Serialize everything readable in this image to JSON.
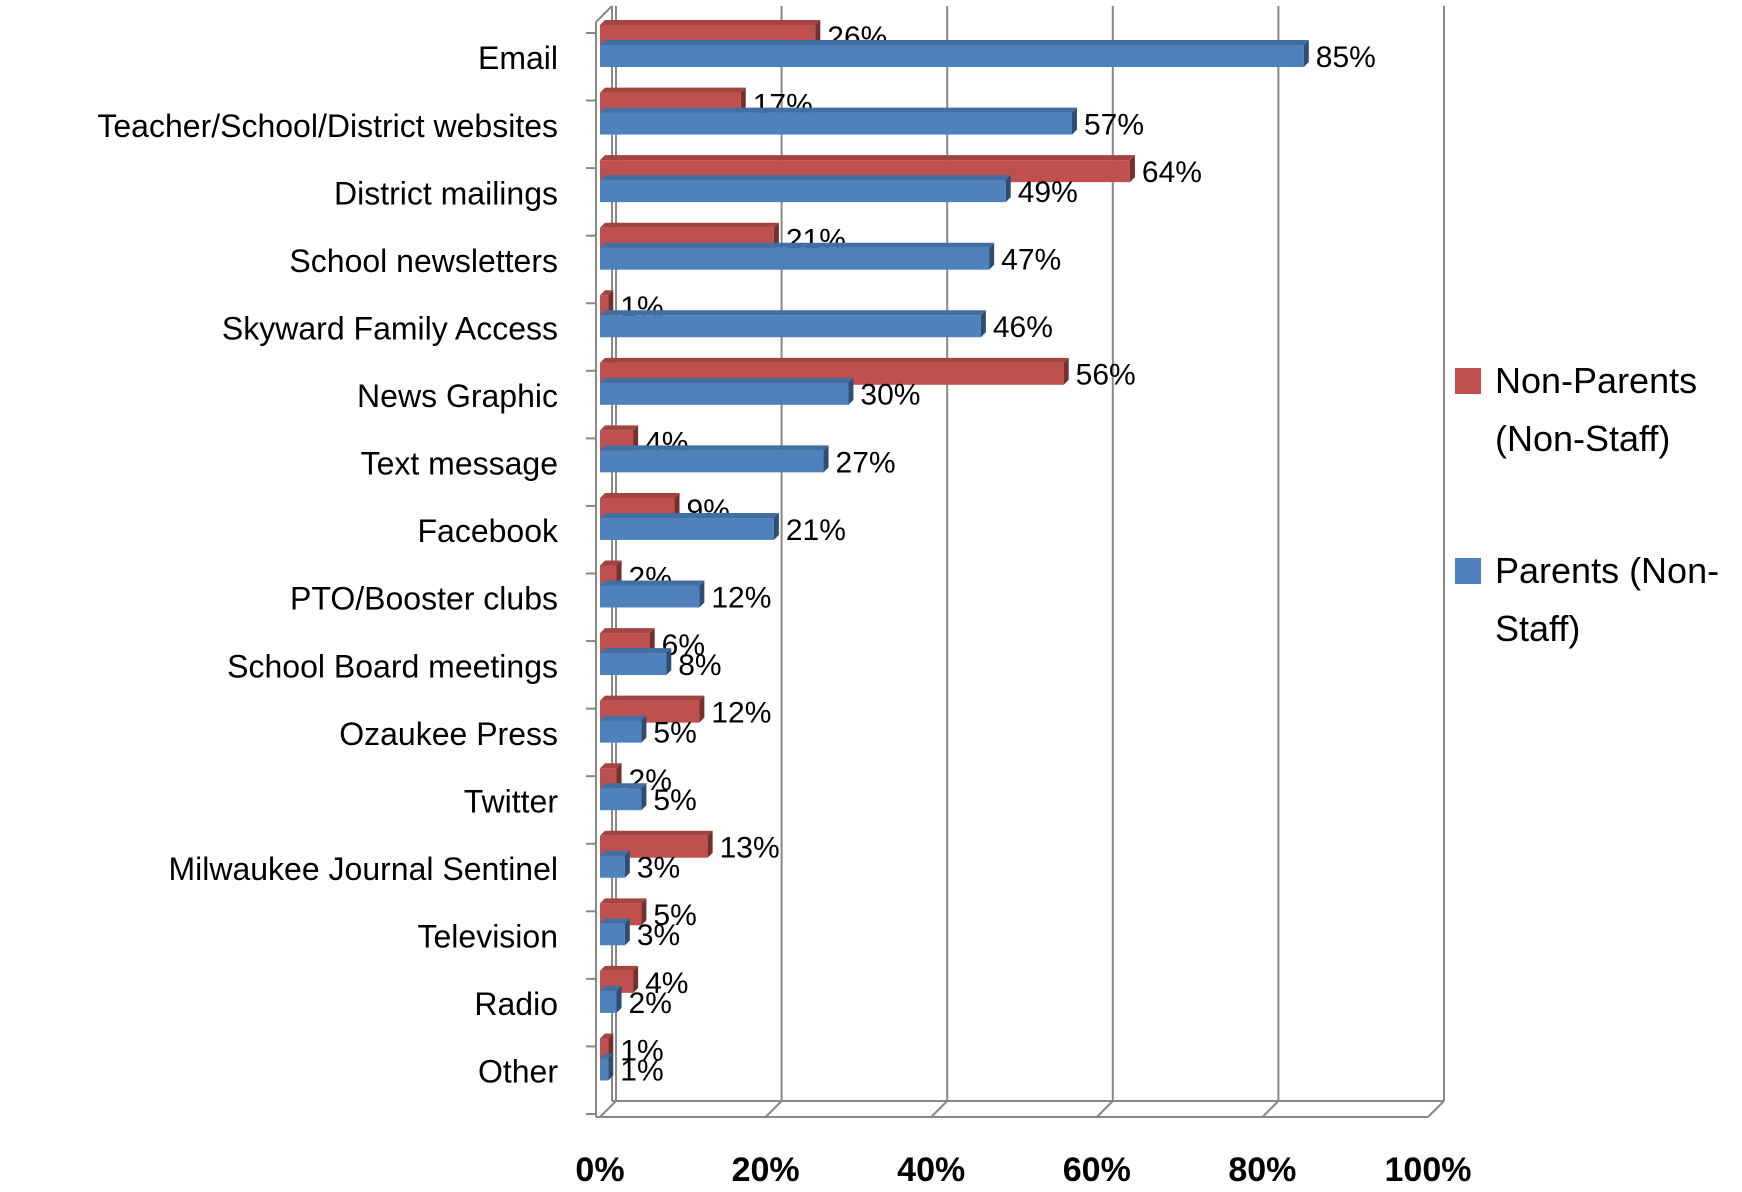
{
  "chart_data": {
    "type": "bar",
    "orientation": "horizontal",
    "categories": [
      "Email",
      "Teacher/School/District websites",
      "District mailings",
      "School newsletters",
      "Skyward Family Access",
      "News Graphic",
      "Text message",
      "Facebook",
      "PTO/Booster clubs",
      "School Board meetings",
      "Ozaukee Press",
      "Twitter",
      "Milwaukee Journal Sentinel",
      "Television",
      "Radio",
      "Other"
    ],
    "series": [
      {
        "name": "Non-Parents (Non-Staff)",
        "color": "#c0504d",
        "values": [
          26,
          17,
          64,
          21,
          1,
          56,
          4,
          9,
          2,
          6,
          12,
          2,
          13,
          5,
          4,
          1
        ],
        "value_labels": [
          "26%",
          "17%",
          "64%",
          "21%",
          "1%",
          "56%",
          "4%",
          "9%",
          "2%",
          "6%",
          "12%",
          "2%",
          "13%",
          "5%",
          "4%",
          "1%"
        ]
      },
      {
        "name": "Parents (Non-Staff)",
        "color": "#4f81bd",
        "values": [
          85,
          57,
          49,
          47,
          46,
          30,
          27,
          21,
          12,
          8,
          5,
          5,
          3,
          3,
          2,
          1
        ],
        "value_labels": [
          "85%",
          "57%",
          "49%",
          "47%",
          "46%",
          "30%",
          "27%",
          "21%",
          "12%",
          "8%",
          "5%",
          "5%",
          "3%",
          "3%",
          "2%",
          "1%"
        ]
      }
    ],
    "xlim": [
      0,
      100
    ],
    "xticks": [
      {
        "value": 0,
        "label": "0%"
      },
      {
        "value": 20,
        "label": "20%"
      },
      {
        "value": 40,
        "label": "40%"
      },
      {
        "value": 60,
        "label": "60%"
      },
      {
        "value": 80,
        "label": "80%"
      },
      {
        "value": 100,
        "label": "100%"
      }
    ],
    "grid": true,
    "legend": "right"
  }
}
